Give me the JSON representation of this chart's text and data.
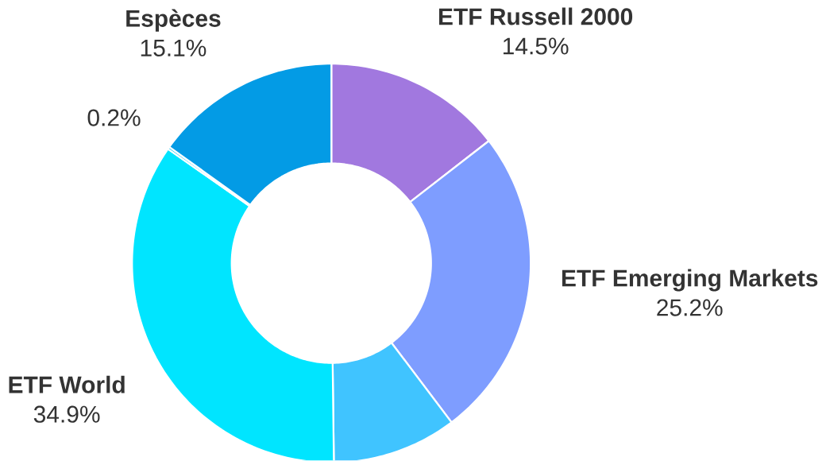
{
  "chart_data": {
    "type": "donut",
    "categories": [
      "ETF Russell 2000",
      "ETF Emerging Markets",
      null,
      "ETF World",
      null,
      "Espèces"
    ],
    "values": [
      14.5,
      25.2,
      10.1,
      34.9,
      0.2,
      15.1
    ],
    "value_labels": [
      "14.5%",
      "25.2%",
      null,
      "34.9%",
      "0.2%",
      "15.1%"
    ],
    "colors": [
      "#a178df",
      "#7e9dff",
      "#40c4ff",
      "#00e5ff",
      "#1ec8f0",
      "#039be5"
    ]
  }
}
